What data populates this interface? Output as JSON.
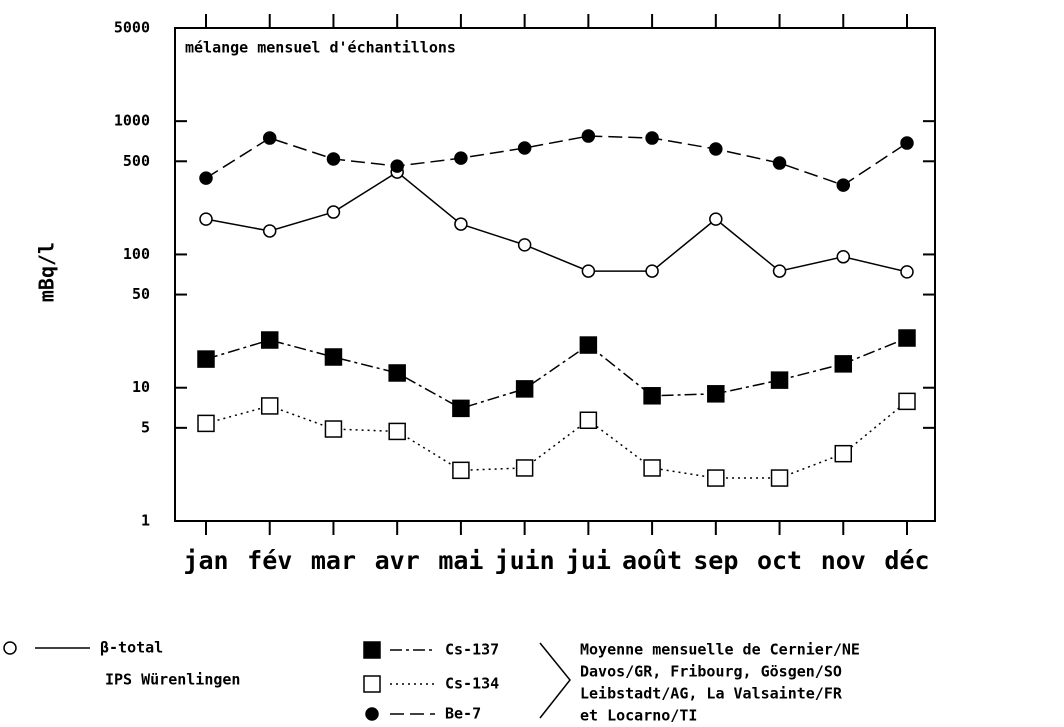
{
  "chart_data": {
    "type": "line",
    "annotation": "mélange mensuel d'échantillons",
    "y_label": "mBq/l",
    "categories": [
      "jan",
      "fév",
      "mar",
      "avr",
      "mai",
      "juin",
      "jui",
      "août",
      "sep",
      "oct",
      "nov",
      "déc"
    ],
    "ylim": [
      1,
      5000
    ],
    "log_y": true,
    "yticks": [
      1,
      5,
      10,
      50,
      100,
      500,
      1000,
      5000
    ],
    "series": [
      {
        "name": "β-total",
        "color": "#000000",
        "marker": "open-circle",
        "dash": "solid",
        "values": [
          184,
          150,
          208,
          415,
          169,
          118,
          75,
          75,
          184,
          75,
          96,
          74
        ]
      },
      {
        "name": "Cs-137",
        "color": "#000000",
        "marker": "filled-square",
        "dash": "dashdot",
        "values": [
          16.4,
          22.8,
          17,
          12.9,
          7,
          9.8,
          20.9,
          8.7,
          9,
          11.4,
          15.1,
          23.6
        ]
      },
      {
        "name": "Cs-134",
        "color": "#000000",
        "marker": "open-square",
        "dash": "dotted",
        "values": [
          5.4,
          7.3,
          4.9,
          4.7,
          2.4,
          2.5,
          5.7,
          2.5,
          2.1,
          2.1,
          3.2,
          7.9
        ]
      },
      {
        "name": "Be-7",
        "color": "#000000",
        "marker": "filled-circle",
        "dash": "dashed",
        "values": [
          374,
          747,
          520,
          460,
          528,
          629,
          773,
          747,
          618,
          485,
          331,
          685
        ]
      }
    ],
    "beta_source": "IPS Würenlingen",
    "legend_note": [
      "Moyenne mensuelle de Cernier/NE",
      "Davos/GR, Fribourg, Gösgen/SO",
      "Leibstadt/AG, La Valsainte/FR",
      "et Locarno/TI"
    ]
  }
}
